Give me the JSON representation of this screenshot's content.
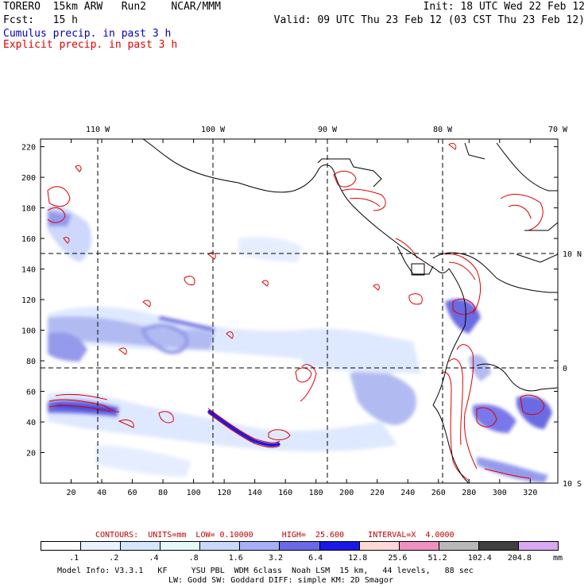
{
  "header": {
    "line1_left": "TORERO  15km ARW   Run2    NCAR/MMM",
    "line1_right": "Init: 18 UTC Wed 22 Feb 12",
    "line2_left": "Fcst:   15 h",
    "line2_right": "Valid: 09 UTC Thu 23 Feb 12 (03 CST Thu 23 Feb 12)",
    "line3": "Cumulus precip. in past 3 h",
    "line4": "Explicit precip. in past 3 h",
    "line3_color": "#0000c0",
    "line4_color": "#e00000"
  },
  "map": {
    "top_lon_labels": [
      "110 W",
      "100 W",
      "90 W",
      "80 W",
      "70 W"
    ],
    "right_lat_labels": [
      "10 N",
      "0",
      "10 S"
    ],
    "left_axis_labels": [
      "220",
      "200",
      "180",
      "160",
      "140",
      "120",
      "100",
      "80",
      "60",
      "40",
      "20"
    ],
    "bottom_axis_labels": [
      "20",
      "40",
      "60",
      "80",
      "100",
      "120",
      "140",
      "160",
      "180",
      "200",
      "220",
      "240",
      "260",
      "280",
      "300",
      "320"
    ],
    "cumulus_color": "#5050e0",
    "explicit_color": "#e00000",
    "coast_color": "#000000"
  },
  "footer": {
    "contours": "CONTOURS:  UNITS=mm  LOW= 0.10000      HIGH=  25.600     INTERVAL=X  4.0000",
    "contours_color": "#c00000",
    "legend_values": [
      ".1",
      ".2",
      ".4",
      ".8",
      "1.6",
      "3.2",
      "6.4",
      "12.8",
      "25.6",
      "51.2",
      "102.4",
      "204.8"
    ],
    "legend_unit": "mm",
    "legend_colors": [
      "#ffffff",
      "#eaf2ff",
      "#d6e6ff",
      "#e4fafa",
      "#c8d8ff",
      "#a6b0f6",
      "#6a6ae8",
      "#1a1ae6",
      "#ffd8d8",
      "#f090c0",
      "#b8b8b8",
      "#404040",
      "#d8a8f0"
    ],
    "model_info_1": "Model Info: V3.3.1   KF     YSU PBL  WDM 6class  Noah LSM  15 km,   44 levels,   88 sec",
    "model_info_2": "LW: Godd SW: Goddard DIFF: simple KM: 2D Smagor"
  }
}
